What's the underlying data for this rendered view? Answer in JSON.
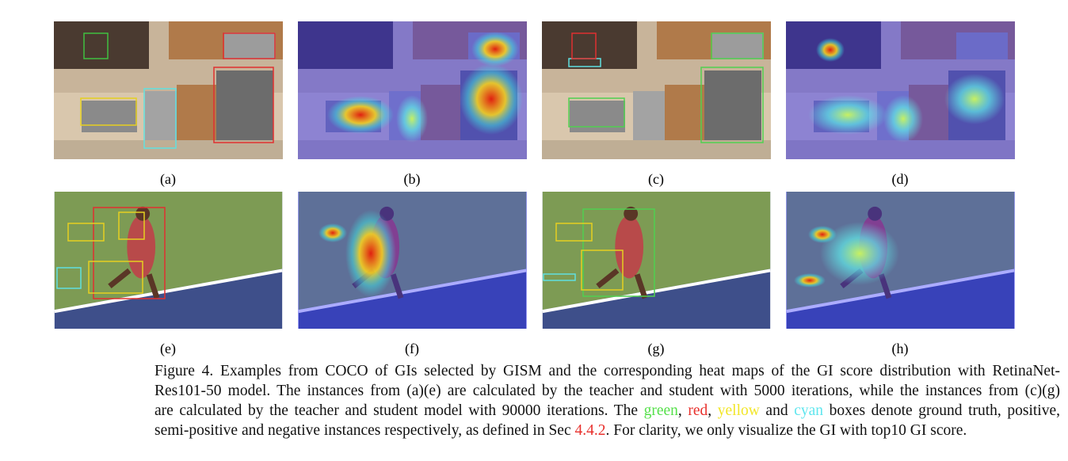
{
  "panels": [
    {
      "label": "(a)"
    },
    {
      "label": "(b)"
    },
    {
      "label": "(c)"
    },
    {
      "label": "(d)"
    },
    {
      "label": "(e)"
    },
    {
      "label": "(f)"
    },
    {
      "label": "(g)"
    },
    {
      "label": "(h)"
    }
  ],
  "caption": {
    "lines": [
      [
        "Figure 4. Examples from COCO of GIs selected by GISM and the corresponding heat maps of the GI score distribution with RetinaNet-"
      ],
      [
        "Res101-50 model. The instances from (a)(e) are calculated by the teacher and student with 5000 iterations, while the instances from (c)(g)"
      ],
      [
        "are calculated by the teacher and student model with 90000 iterations. The ",
        "green",
        ", ",
        "red",
        ", ",
        "yellow",
        " and ",
        "cyan",
        " boxes denote ground truth, positive,"
      ],
      [
        "semi-positive and negative instances respectively, as defined in Sec ",
        "4.4.2",
        ". For clarity, we only visualize the GI with top10 GI score."
      ]
    ]
  }
}
